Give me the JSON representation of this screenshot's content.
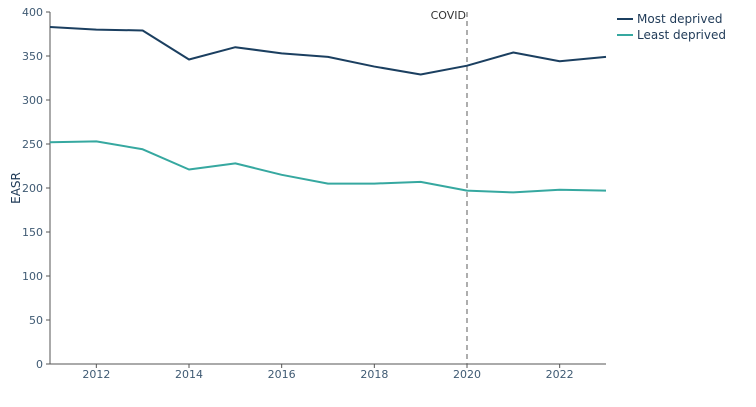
{
  "chart_data": {
    "type": "line",
    "title": "",
    "xlabel": "",
    "ylabel": "EASR",
    "xlim": [
      2011,
      2023
    ],
    "ylim": [
      0,
      400
    ],
    "x_ticks": [
      2012,
      2014,
      2016,
      2018,
      2020,
      2022
    ],
    "y_ticks": [
      0,
      50,
      100,
      150,
      200,
      250,
      300,
      350,
      400
    ],
    "grid": false,
    "legend_position": "top-right",
    "x": [
      2011,
      2012,
      2013,
      2014,
      2015,
      2016,
      2017,
      2018,
      2019,
      2020,
      2021,
      2022,
      2023
    ],
    "series": [
      {
        "name": "Most deprived",
        "color": "#1b3f60",
        "values": [
          383,
          380,
          379,
          346,
          360,
          353,
          349,
          338,
          329,
          339,
          354,
          344,
          349
        ]
      },
      {
        "name": "Least deprived",
        "color": "#36a8a0",
        "values": [
          252,
          253,
          244,
          221,
          228,
          215,
          205,
          205,
          207,
          197,
          195,
          198,
          197
        ]
      }
    ],
    "annotations": [
      {
        "text": "COVID",
        "x": 2020,
        "style": "dashed-vertical-line"
      }
    ]
  }
}
